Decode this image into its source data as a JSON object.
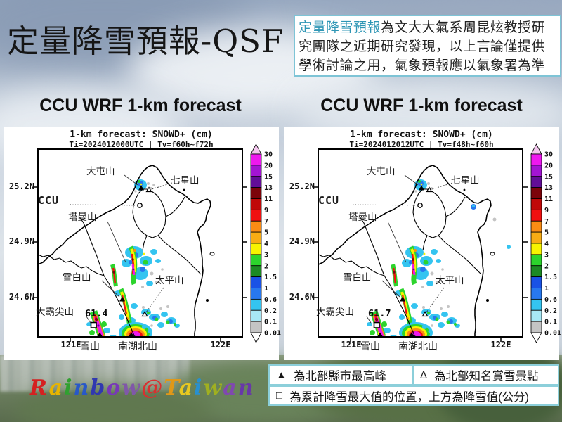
{
  "slide": {
    "title": "定量降雪預報-QSF",
    "disclaimer": {
      "highlight": "定量降雪預報",
      "rest": "為文大大氣系周昆炫教授研究團隊之近期研究發現，以上言論僅提供學術討論之用，氣象預報應以氣象署為準"
    },
    "watermark": {
      "text": "Rainbow@Taiwan",
      "colors": [
        "#d42020",
        "#e8b400",
        "#30a030",
        "#2858c8",
        "#3038b0",
        "#7838b8",
        "#8058a8",
        "#d83030",
        "#e09818",
        "#e8c820",
        "#2890d0",
        "#a0b020",
        "#8048b0",
        "#6838a8"
      ]
    }
  },
  "maps": [
    {
      "header": "CCU WRF 1-km forecast",
      "title": "1-km forecast: SNOWD+ (cm)",
      "subtitle": "Ti=2024012000UTC | Tv=f60h~f72h",
      "max_value": "61.4"
    },
    {
      "header": "CCU WRF 1-km forecast",
      "title": "1-km forecast: SNOWD+ (cm)",
      "subtitle": "Ti=2024012012UTC | Tv=f48h~f60h",
      "max_value": "61.7"
    }
  ],
  "map_labels": {
    "lat": [
      "25.2N",
      "24.9N",
      "24.6N"
    ],
    "lon": [
      "121E",
      "122E"
    ],
    "peaks": {
      "datunshan": "大屯山",
      "qixingshan": "七星山",
      "ccu": "CCU",
      "tamanshan": "塔曼山",
      "xuebaishan": "雪白山",
      "taipingshan": "太平山",
      "dabajianshan": "大霸尖山",
      "xueshan": "雪山",
      "nanhubeishan": "南湖北山"
    }
  },
  "colorbar": {
    "unit": "cm",
    "labels": [
      "30",
      "20",
      "15",
      "13",
      "11",
      "9",
      "7",
      "5",
      "4",
      "3",
      "2",
      "1.5",
      "1",
      "0.6",
      "0.2",
      "0.1",
      "0.01"
    ],
    "colors": [
      "#ee18ee",
      "#a314d2",
      "#620d96",
      "#7c040a",
      "#c00808",
      "#f01010",
      "#fa8c14",
      "#f8ac14",
      "#f8f400",
      "#2cd42c",
      "#1c8a24",
      "#1a52e6",
      "#2878ee",
      "#34c4f0",
      "#a8e8f6",
      "#c4c4c4"
    ],
    "arrow_top": "#f4c6ee",
    "arrow_bottom": "#ffffff"
  },
  "legend": {
    "items": [
      {
        "symbol": "▲",
        "text": "為北部縣市最高峰"
      },
      {
        "symbol": "Δ",
        "text": "為北部知名賞雪景點"
      },
      {
        "symbol": "□",
        "text": "為累計降雪最大值的位置，上方為降雪值(公分)"
      }
    ]
  }
}
